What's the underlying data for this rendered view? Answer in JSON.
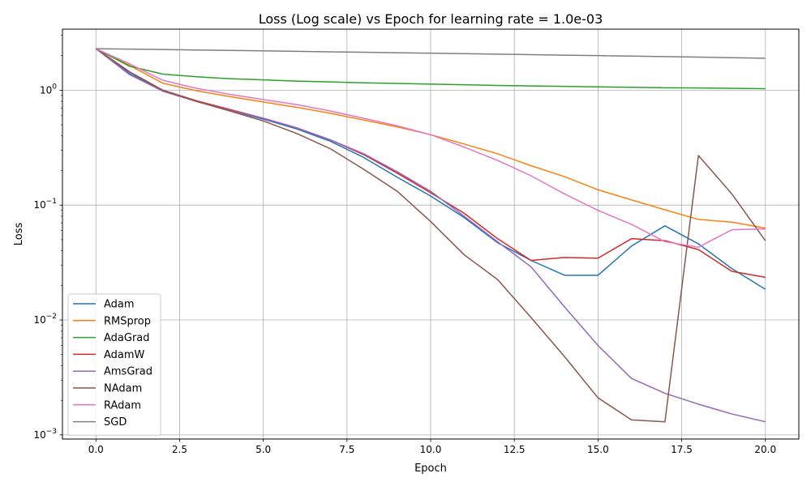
{
  "chart_data": {
    "type": "line",
    "title": "Loss (Log scale) vs Epoch for learning rate = 1.0e-03",
    "xlabel": "Epoch",
    "ylabel": "Loss",
    "yscale": "log",
    "xlim": [
      -1.0,
      21.0
    ],
    "ylim": [
      0.00092,
      3.4
    ],
    "x_ticks": [
      0.0,
      2.5,
      5.0,
      7.5,
      10.0,
      12.5,
      15.0,
      17.5,
      20.0
    ],
    "x_tick_labels": [
      "0.0",
      "2.5",
      "5.0",
      "7.5",
      "10.0",
      "12.5",
      "15.0",
      "17.5",
      "20.0"
    ],
    "y_ticks": [
      0.001,
      0.01,
      0.1,
      1
    ],
    "y_tick_labels": [
      {
        "base": "10",
        "exp": "−3"
      },
      {
        "base": "10",
        "exp": "−2"
      },
      {
        "base": "10",
        "exp": "−1"
      },
      {
        "base": "10",
        "exp": "0"
      }
    ],
    "grid": true,
    "legend_position": "lower-left",
    "x": [
      0,
      1,
      2,
      3,
      4,
      5,
      6,
      7,
      8,
      9,
      10,
      11,
      12,
      13,
      14,
      15,
      16,
      17,
      18,
      19,
      20
    ],
    "series": [
      {
        "name": "Adam",
        "color": "#1f77b4",
        "values": [
          2.3,
          1.4,
          0.99,
          0.8,
          0.67,
          0.56,
          0.46,
          0.36,
          0.26,
          0.175,
          0.12,
          0.078,
          0.047,
          0.033,
          0.0245,
          0.0245,
          0.044,
          0.066,
          0.046,
          0.028,
          0.0185
        ]
      },
      {
        "name": "RMSprop",
        "color": "#ff7f0e",
        "values": [
          2.3,
          1.65,
          1.15,
          0.99,
          0.88,
          0.79,
          0.71,
          0.63,
          0.55,
          0.48,
          0.41,
          0.34,
          0.28,
          0.22,
          0.177,
          0.136,
          0.111,
          0.091,
          0.075,
          0.071,
          0.063
        ]
      },
      {
        "name": "AdaGrad",
        "color": "#2ca02c",
        "values": [
          2.3,
          1.62,
          1.38,
          1.31,
          1.26,
          1.23,
          1.2,
          1.18,
          1.16,
          1.145,
          1.13,
          1.115,
          1.1,
          1.09,
          1.08,
          1.07,
          1.06,
          1.05,
          1.045,
          1.04,
          1.03
        ]
      },
      {
        "name": "AdamW",
        "color": "#d62728",
        "values": [
          2.3,
          1.45,
          1.0,
          0.81,
          0.68,
          0.57,
          0.47,
          0.37,
          0.275,
          0.19,
          0.128,
          0.085,
          0.051,
          0.033,
          0.035,
          0.0345,
          0.051,
          0.049,
          0.041,
          0.0265,
          0.0235
        ]
      },
      {
        "name": "AmsGrad",
        "color": "#9467bd",
        "values": [
          2.3,
          1.37,
          0.98,
          0.8,
          0.67,
          0.57,
          0.47,
          0.37,
          0.28,
          0.195,
          0.132,
          0.08,
          0.048,
          0.029,
          0.013,
          0.006,
          0.0031,
          0.0023,
          0.00185,
          0.00152,
          0.0013
        ]
      },
      {
        "name": "NAdam",
        "color": "#8c564b",
        "values": [
          2.3,
          1.45,
          1.0,
          0.8,
          0.66,
          0.54,
          0.42,
          0.31,
          0.205,
          0.132,
          0.072,
          0.037,
          0.0225,
          0.0105,
          0.0048,
          0.0021,
          0.00135,
          0.0013,
          0.27,
          0.125,
          0.049
        ]
      },
      {
        "name": "RAdam",
        "color": "#e377c2",
        "values": [
          2.3,
          1.7,
          1.22,
          1.04,
          0.92,
          0.83,
          0.75,
          0.66,
          0.57,
          0.49,
          0.41,
          0.32,
          0.245,
          0.18,
          0.125,
          0.09,
          0.068,
          0.048,
          0.043,
          0.061,
          0.062
        ]
      },
      {
        "name": "SGD",
        "color": "#7f7f7f",
        "values": [
          2.3,
          2.28,
          2.26,
          2.24,
          2.22,
          2.2,
          2.18,
          2.16,
          2.14,
          2.12,
          2.1,
          2.08,
          2.06,
          2.04,
          2.02,
          2.0,
          1.98,
          1.96,
          1.94,
          1.92,
          1.9
        ]
      }
    ]
  }
}
